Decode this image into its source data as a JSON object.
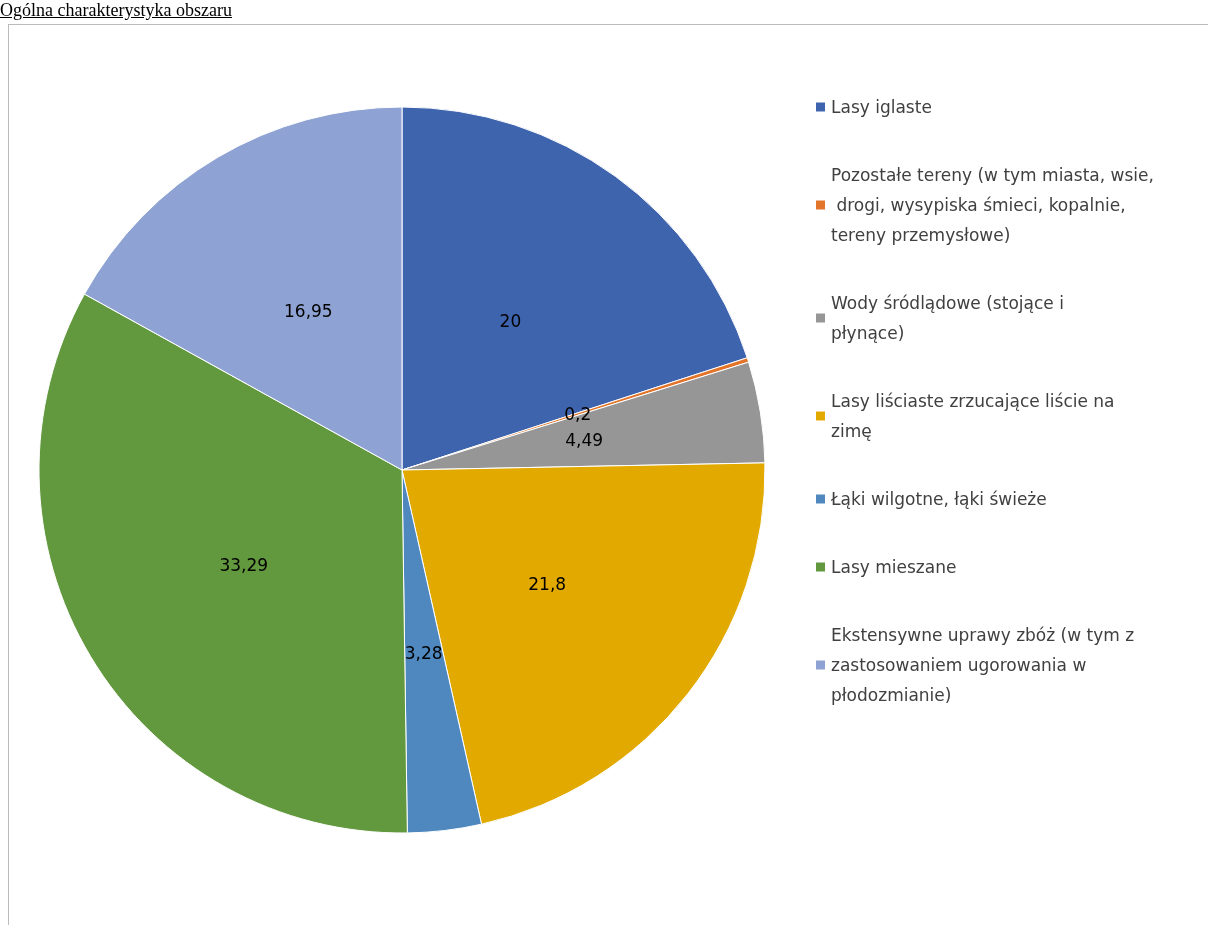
{
  "chart_data": {
    "type": "pie",
    "title": "Ogólna charakterystyka obszaru",
    "categories": [
      "Lasy iglaste",
      "Pozostałe tereny (w tym miasta, wsie, drogi, wysypiska śmieci, kopalnie, tereny przemysłowe)",
      "Wody śródlądowe (stojące i płynące)",
      "Lasy liściaste zrzucające liście na zimę",
      "Łąki wilgotne, łąki świeże",
      "Lasy mieszane",
      "Ekstensywne uprawy zbóż (w tym z zastosowaniem ugorowania w płodozmianie)"
    ],
    "values": [
      20,
      0.2,
      4.49,
      21.8,
      3.28,
      33.29,
      16.95
    ],
    "colors": [
      "#3f64ae",
      "#e2752a",
      "#969696",
      "#e2aa00",
      "#4e88bf",
      "#62993e",
      "#8ea3d3"
    ],
    "value_labels": [
      "20",
      "0,2",
      "4,49",
      "21,8",
      "3,28",
      "33,29",
      "16,95"
    ],
    "legend": "right"
  }
}
